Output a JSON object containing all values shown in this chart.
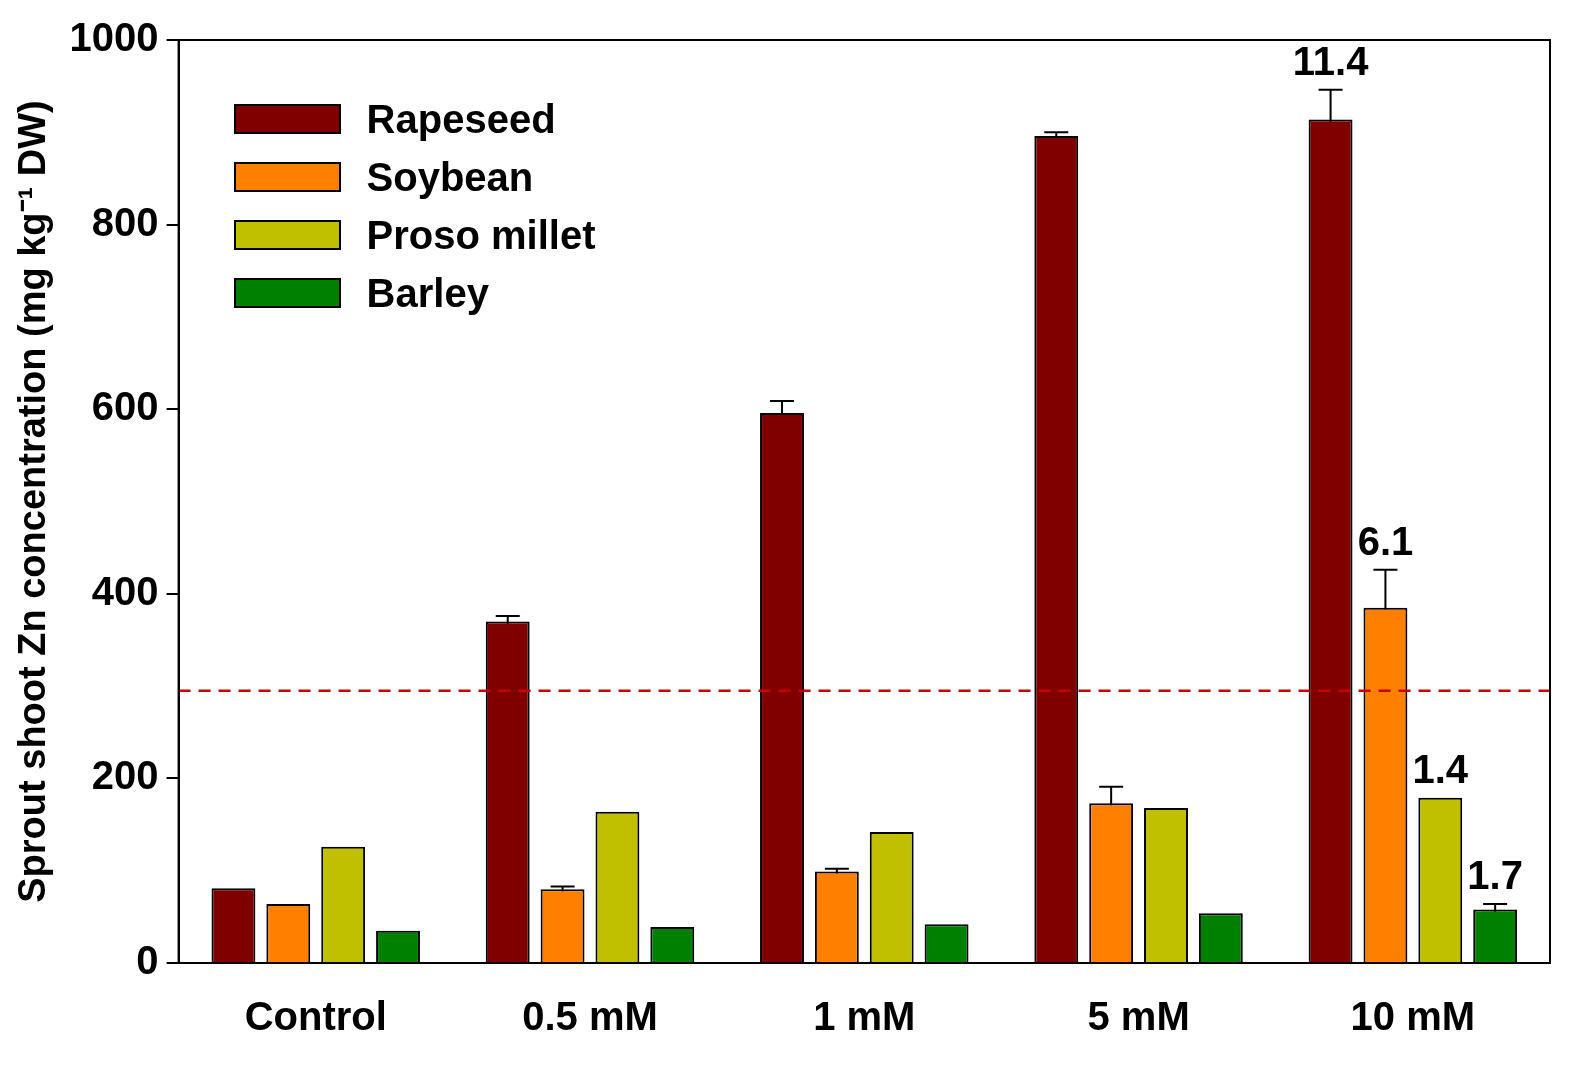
{
  "chart_data": {
    "type": "bar",
    "ylabel": "Sprout shoot Zn concentration (mg kg⁻¹ DW)",
    "categories": [
      "Control",
      "0.5 mM",
      "1 mM",
      "5 mM",
      "10 mM"
    ],
    "series": [
      {
        "name": "Rapeseed",
        "color": "#800000",
        "values": [
          81,
          370,
          596,
          896,
          914
        ],
        "errors": [
          null,
          6,
          13,
          4,
          32
        ]
      },
      {
        "name": "Soybean",
        "color": "#ff8000",
        "values": [
          64,
          80,
          99,
          173,
          385
        ],
        "errors": [
          null,
          3,
          3,
          18,
          41
        ]
      },
      {
        "name": "Proso millet",
        "color": "#c0c000",
        "values": [
          126,
          164,
          142,
          168,
          179
        ]
      },
      {
        "name": "Barley",
        "color": "#008000",
        "values": [
          35,
          39,
          42,
          54,
          58
        ],
        "errors": [
          null,
          null,
          null,
          null,
          6
        ]
      }
    ],
    "ylim": [
      0,
      1000
    ],
    "yticks": [
      0,
      200,
      400,
      600,
      800,
      1000
    ],
    "grid": false,
    "legend": "top left",
    "ref_lines": [
      {
        "axis": "y",
        "value": 295,
        "color": "#cc0000",
        "line_style": "dashed"
      }
    ],
    "annotations": [
      "11.4",
      "6.1",
      "1.4",
      "1.7"
    ]
  }
}
